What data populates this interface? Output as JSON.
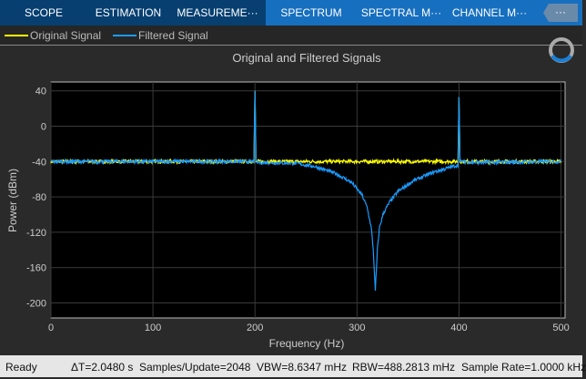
{
  "tabs": [
    "SCOPE",
    "ESTIMATION",
    "MEASUREME···",
    "SPECTRUM",
    "SPECTRAL M···",
    "CHANNEL M···"
  ],
  "more_label": "···",
  "legend": [
    {
      "label": "Original Signal",
      "color": "#ffff00"
    },
    {
      "label": "Filtered Signal",
      "color": "#1a9bff"
    }
  ],
  "status": {
    "state": "Ready",
    "dt": "ΔT=2.0480 s",
    "samples": "Samples/Update=2048",
    "vbw": "VBW=8.6347 mHz",
    "rbw": "RBW=488.2813 mHz",
    "rate": "Sample Rate=1.0000 kHz"
  },
  "chart_data": {
    "type": "line",
    "title": "Original and Filtered Signals",
    "xlabel": "Frequency (Hz)",
    "ylabel": "Power (dBm)",
    "xlim": [
      0,
      504
    ],
    "ylim": [
      -217,
      50
    ],
    "xticks": [
      0,
      100,
      200,
      300,
      400,
      500
    ],
    "yticks": [
      40,
      0,
      -40,
      -80,
      -120,
      -160,
      -200
    ],
    "grid": true,
    "series": [
      {
        "name": "Original Signal",
        "color": "#ffff00",
        "x": [
          0,
          199,
          200,
          201,
          399,
          400,
          401,
          500
        ],
        "y": [
          -40,
          -40,
          40,
          -40,
          -40,
          33,
          -40,
          -40
        ]
      },
      {
        "name": "Filtered Signal",
        "color": "#1a9bff",
        "x": [
          0,
          199,
          200,
          201,
          240,
          260,
          280,
          295,
          305,
          310,
          314,
          316,
          318,
          320,
          322,
          326,
          332,
          340,
          355,
          375,
          399,
          400,
          401,
          420,
          500
        ],
        "y": [
          -40,
          -40,
          40,
          -41,
          -42,
          -46,
          -54,
          -64,
          -78,
          -92,
          -115,
          -140,
          -187,
          -140,
          -115,
          -98,
          -86,
          -74,
          -62,
          -52,
          -44,
          33,
          -40,
          -41,
          -40
        ]
      }
    ]
  }
}
